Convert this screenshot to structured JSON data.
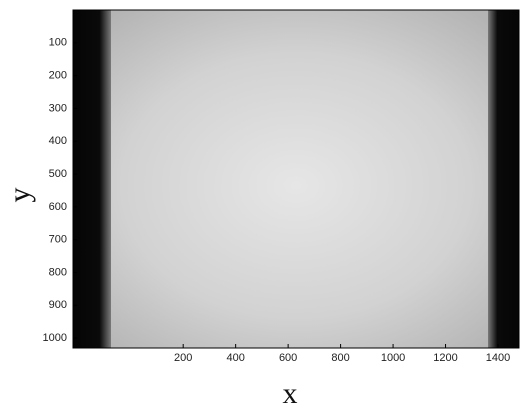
{
  "chart_data": {
    "type": "image",
    "xlabel": "x",
    "ylabel": "y",
    "xlim": [
      -220,
      1480
    ],
    "xticks": [
      200,
      400,
      600,
      800,
      1000,
      1200,
      1400
    ],
    "ylim": [
      0,
      1030
    ],
    "yticks": [
      100,
      200,
      300,
      400,
      500,
      600,
      700,
      800,
      900,
      1000
    ],
    "y_reversed": true
  }
}
